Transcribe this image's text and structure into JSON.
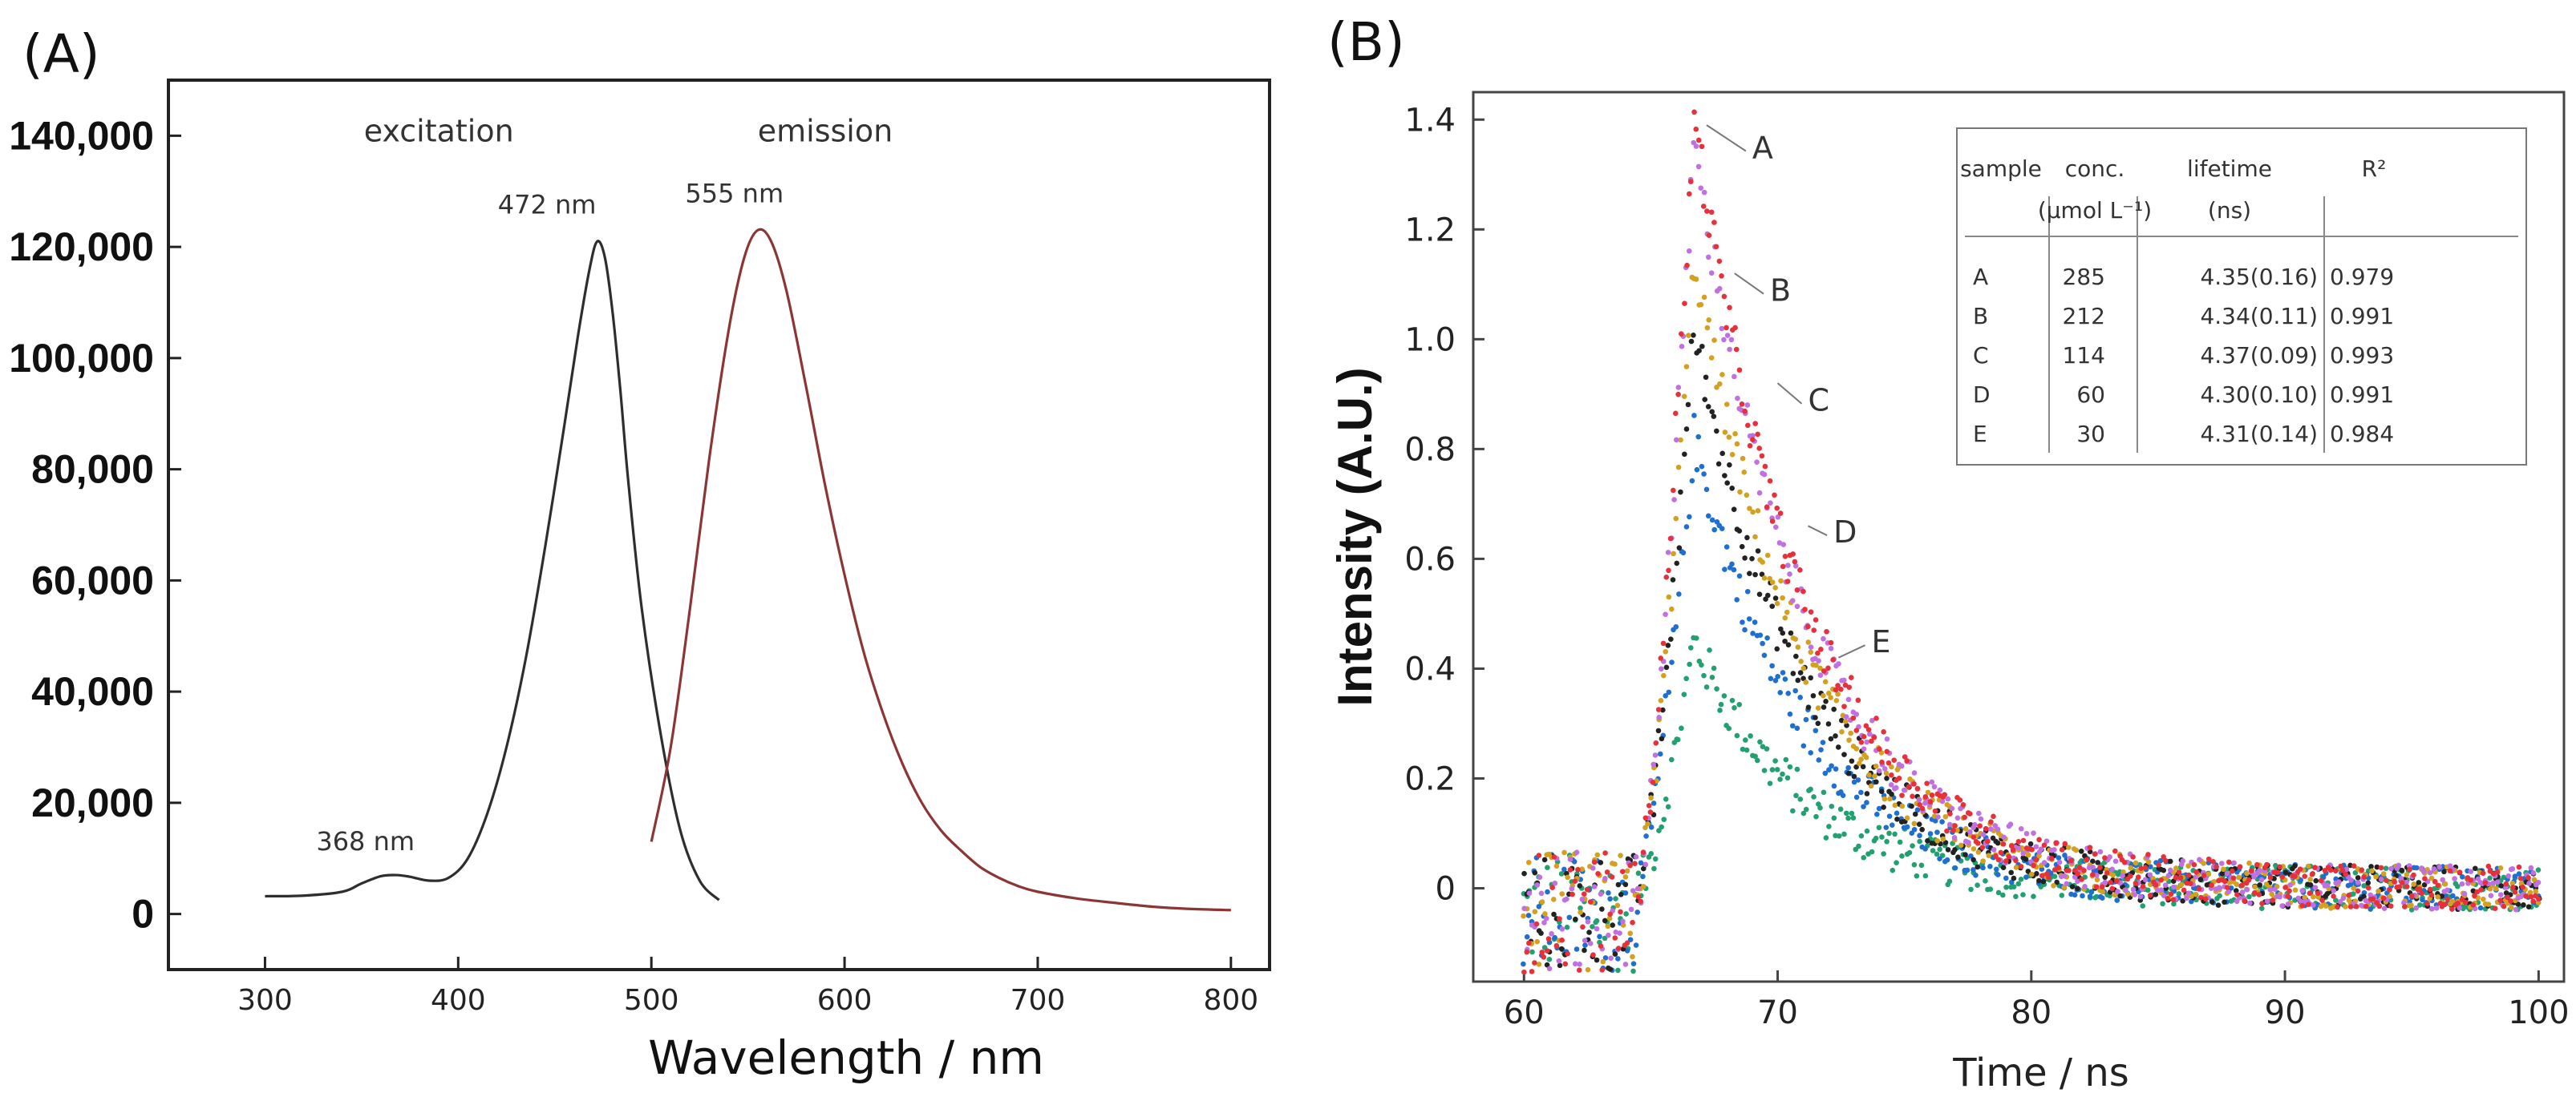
{
  "chart_data": [
    {
      "panel_label": "(A)",
      "type": "line",
      "title": "",
      "xlabel": "Wavelength / nm",
      "ylabel": "",
      "xlim": [
        250,
        820
      ],
      "ylim": [
        -10000,
        150000
      ],
      "x_ticks": [
        300,
        400,
        500,
        600,
        700,
        800
      ],
      "x_tick_labels": [
        "300",
        "400",
        "500",
        "600",
        "700",
        "800"
      ],
      "y_ticks": [
        0,
        20000,
        40000,
        60000,
        80000,
        100000,
        120000,
        140000
      ],
      "y_tick_labels": [
        "0",
        "20,000",
        "40,000",
        "60,000",
        "80,000",
        "100,000",
        "120,000",
        "140,000"
      ],
      "grid": false,
      "series": [
        {
          "name": "excitation",
          "color": "#2e2e2e",
          "x": [
            300,
            320,
            340,
            350,
            360,
            368,
            375,
            385,
            395,
            405,
            415,
            425,
            435,
            445,
            455,
            462,
            468,
            472,
            476,
            480,
            484,
            488,
            495,
            505,
            515,
            525,
            535
          ],
          "y": [
            3200,
            3300,
            4000,
            5500,
            6800,
            7000,
            6700,
            6000,
            6500,
            10000,
            18000,
            30000,
            46000,
            66000,
            88000,
            104000,
            116000,
            121000,
            118000,
            108000,
            94000,
            78000,
            55000,
            32000,
            15000,
            6000,
            2500
          ]
        },
        {
          "name": "emission",
          "color": "#8c3535",
          "x": [
            500,
            510,
            520,
            530,
            540,
            548,
            555,
            562,
            570,
            580,
            590,
            600,
            610,
            620,
            630,
            640,
            650,
            660,
            670,
            680,
            690,
            700,
            720,
            740,
            760,
            780,
            800
          ],
          "y": [
            13000,
            30000,
            55000,
            82000,
            105000,
            118000,
            123000,
            121000,
            112000,
            95000,
            77000,
            61000,
            47000,
            36000,
            27000,
            20000,
            15000,
            11500,
            8500,
            6500,
            5000,
            4000,
            2800,
            2000,
            1300,
            900,
            700
          ]
        }
      ],
      "annotations": [
        {
          "text": "excitation",
          "x": 390,
          "y": 139000
        },
        {
          "text": "emission",
          "x": 590,
          "y": 139000
        },
        {
          "text": "472 nm",
          "x": 446,
          "y": 126000
        },
        {
          "text": "555 nm",
          "x": 543,
          "y": 128000
        },
        {
          "text": "368 nm",
          "x": 352,
          "y": 11500
        }
      ]
    },
    {
      "panel_label": "(B)",
      "type": "scatter",
      "title": "",
      "xlabel": "Time / ns",
      "ylabel": "Intensity (A.U.)",
      "xlim": [
        58,
        101
      ],
      "ylim": [
        -0.17,
        1.45
      ],
      "x_ticks": [
        60,
        70,
        80,
        90,
        100
      ],
      "x_tick_labels": [
        "60",
        "70",
        "80",
        "90",
        "100"
      ],
      "y_ticks": [
        0,
        0.2,
        0.4,
        0.6,
        0.8,
        1.0,
        1.2,
        1.4
      ],
      "y_tick_labels": [
        "0",
        "0.2",
        "0.4",
        "0.6",
        "0.8",
        "1.0",
        "1.2",
        "1.4"
      ],
      "grid": false,
      "rise_start_ns": 64.5,
      "peak_time_ns": 66.7,
      "series": [
        {
          "name": "A",
          "color": "#e8303a",
          "peak": 1.41,
          "lifetime_ns": 4.35
        },
        {
          "name": "A",
          "color": "#c070e0",
          "peak": 1.36,
          "lifetime_ns": 4.35
        },
        {
          "name": "B",
          "color": "#d4a020",
          "peak": 1.15,
          "lifetime_ns": 4.34
        },
        {
          "name": "C",
          "color": "#222222",
          "peak": 1.02,
          "lifetime_ns": 4.37
        },
        {
          "name": "D",
          "color": "#1f6fd0",
          "peak": 0.82,
          "lifetime_ns": 4.3
        },
        {
          "name": "E",
          "color": "#22a070",
          "peak": 0.45,
          "lifetime_ns": 4.31
        }
      ],
      "curve_labels": [
        {
          "text": "A",
          "x": 69.0,
          "y": 1.35
        },
        {
          "text": "B",
          "x": 69.7,
          "y": 1.09
        },
        {
          "text": "C",
          "x": 71.2,
          "y": 0.89
        },
        {
          "text": "D",
          "x": 72.2,
          "y": 0.65
        },
        {
          "text": "E",
          "x": 73.7,
          "y": 0.45
        }
      ],
      "table": {
        "headers": [
          "sample",
          "conc.",
          "lifetime",
          "R²"
        ],
        "subheaders": [
          "",
          "(μmol L⁻¹)",
          "(ns)",
          ""
        ],
        "rows": [
          [
            "A",
            "285",
            "4.35(0.16)",
            "0.979"
          ],
          [
            "B",
            "212",
            "4.34(0.11)",
            "0.991"
          ],
          [
            "C",
            "114",
            "4.37(0.09)",
            "0.993"
          ],
          [
            "D",
            "60",
            "4.30(0.10)",
            "0.991"
          ],
          [
            "E",
            "30",
            "4.31(0.14)",
            "0.984"
          ]
        ]
      }
    }
  ]
}
